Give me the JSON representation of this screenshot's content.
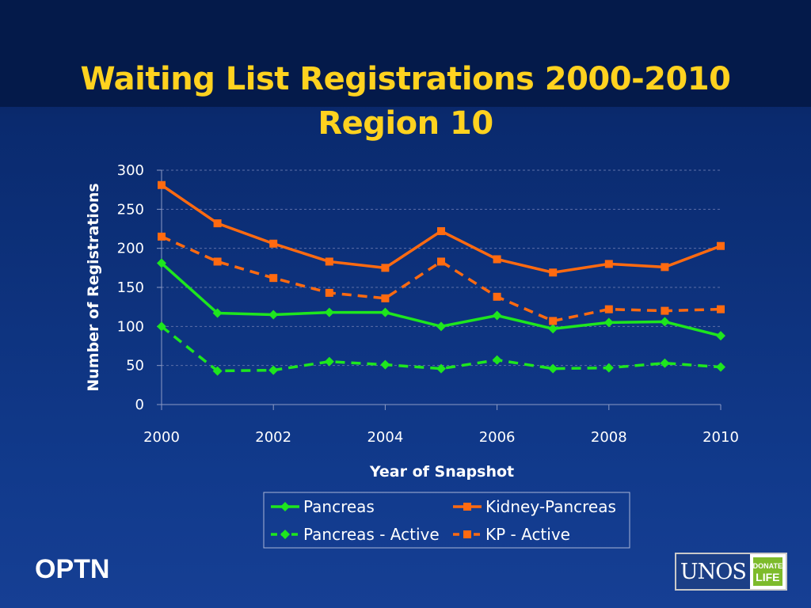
{
  "slide": {
    "title_line1": "Waiting List Registrations 2000-2010",
    "title_line2": "Region 10",
    "footer_left": "OPTN",
    "logo_text": "UNOS",
    "logo_badge_line1": "DONATE",
    "logo_badge_line2": "LIFE"
  },
  "colors": {
    "title": "#ffd21f",
    "pancreas": "#1ee61e",
    "kidney_pancreas": "#ff6a10",
    "background": "#0a2a6e"
  },
  "chart_data": {
    "type": "line",
    "title": "Waiting List Registrations 2000-2010 Region 10",
    "xlabel": "Year of Snapshot",
    "ylabel": "Number of Registrations",
    "x": [
      2000,
      2001,
      2002,
      2003,
      2004,
      2005,
      2006,
      2007,
      2008,
      2009,
      2010
    ],
    "x_ticks": [
      2000,
      2002,
      2004,
      2006,
      2008,
      2010
    ],
    "y_ticks": [
      0,
      50,
      100,
      150,
      200,
      250,
      300
    ],
    "xlim": [
      2000,
      2010
    ],
    "ylim": [
      0,
      300
    ],
    "grid": "horizontal dashed",
    "legend_position": "bottom",
    "series": [
      {
        "name": "Pancreas",
        "color": "#1ee61e",
        "dash": "solid",
        "marker": "diamond",
        "values": [
          181,
          117,
          115,
          118,
          118,
          100,
          114,
          97,
          105,
          106,
          88
        ]
      },
      {
        "name": "Kidney-Pancreas",
        "color": "#ff6a10",
        "dash": "solid",
        "marker": "square",
        "values": [
          281,
          232,
          206,
          183,
          175,
          222,
          186,
          169,
          180,
          176,
          203
        ]
      },
      {
        "name": "Pancreas - Active",
        "color": "#1ee61e",
        "dash": "dashed",
        "marker": "diamond",
        "values": [
          100,
          43,
          44,
          55,
          51,
          46,
          57,
          46,
          47,
          53,
          48
        ]
      },
      {
        "name": "KP - Active",
        "color": "#ff6a10",
        "dash": "dashed",
        "marker": "square",
        "values": [
          215,
          183,
          162,
          143,
          136,
          183,
          138,
          107,
          122,
          120,
          122
        ]
      }
    ]
  }
}
